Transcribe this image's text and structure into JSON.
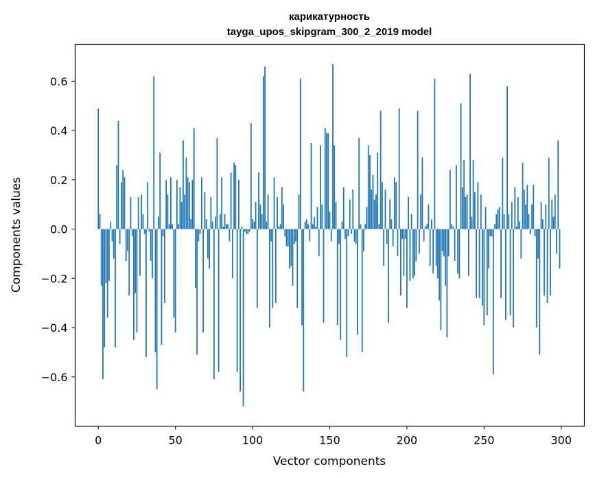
{
  "chart_data": {
    "type": "bar",
    "title_line1": "карикатурность",
    "title_line2": "tayga_upos_skipgram_300_2_2019 model",
    "xlabel": "Vector components",
    "ylabel": "Components values",
    "xlim": [
      -15,
      315
    ],
    "ylim": [
      -0.8,
      0.75
    ],
    "xticks": [
      0,
      50,
      100,
      150,
      200,
      250,
      300
    ],
    "xtick_labels": [
      "0",
      "50",
      "100",
      "150",
      "200",
      "250",
      "300"
    ],
    "yticks": [
      -0.6,
      -0.4,
      -0.2,
      0.0,
      0.2,
      0.4,
      0.6
    ],
    "ytick_labels": [
      "−0.6",
      "−0.4",
      "−0.2",
      "0.0",
      "0.2",
      "0.4",
      "0.6"
    ],
    "bar_color": "#1f77b4",
    "grid": false,
    "x": [
      0,
      1,
      2,
      3,
      4,
      5,
      6,
      7,
      8,
      9,
      10,
      11,
      12,
      13,
      14,
      15,
      16,
      17,
      18,
      19,
      20,
      21,
      22,
      23,
      24,
      25,
      26,
      27,
      28,
      29,
      30,
      31,
      32,
      33,
      34,
      35,
      36,
      37,
      38,
      39,
      40,
      41,
      42,
      43,
      44,
      45,
      46,
      47,
      48,
      49,
      50,
      51,
      52,
      53,
      54,
      55,
      56,
      57,
      58,
      59,
      60,
      61,
      62,
      63,
      64,
      65,
      66,
      67,
      68,
      69,
      70,
      71,
      72,
      73,
      74,
      75,
      76,
      77,
      78,
      79,
      80,
      81,
      82,
      83,
      84,
      85,
      86,
      87,
      88,
      89,
      90,
      91,
      92,
      93,
      94,
      95,
      96,
      97,
      98,
      99,
      100,
      101,
      102,
      103,
      104,
      105,
      106,
      107,
      108,
      109,
      110,
      111,
      112,
      113,
      114,
      115,
      116,
      117,
      118,
      119,
      120,
      121,
      122,
      123,
      124,
      125,
      126,
      127,
      128,
      129,
      130,
      131,
      132,
      133,
      134,
      135,
      136,
      137,
      138,
      139,
      140,
      141,
      142,
      143,
      144,
      145,
      146,
      147,
      148,
      149,
      150,
      151,
      152,
      153,
      154,
      155,
      156,
      157,
      158,
      159,
      160,
      161,
      162,
      163,
      164,
      165,
      166,
      167,
      168,
      169,
      170,
      171,
      172,
      173,
      174,
      175,
      176,
      177,
      178,
      179,
      180,
      181,
      182,
      183,
      184,
      185,
      186,
      187,
      188,
      189,
      190,
      191,
      192,
      193,
      194,
      195,
      196,
      197,
      198,
      199,
      200,
      201,
      202,
      203,
      204,
      205,
      206,
      207,
      208,
      209,
      210,
      211,
      212,
      213,
      214,
      215,
      216,
      217,
      218,
      219,
      220,
      221,
      222,
      223,
      224,
      225,
      226,
      227,
      228,
      229,
      230,
      231,
      232,
      233,
      234,
      235,
      236,
      237,
      238,
      239,
      240,
      241,
      242,
      243,
      244,
      245,
      246,
      247,
      248,
      249,
      250,
      251,
      252,
      253,
      254,
      255,
      256,
      257,
      258,
      259,
      260,
      261,
      262,
      263,
      264,
      265,
      266,
      267,
      268,
      269,
      270,
      271,
      272,
      273,
      274,
      275,
      276,
      277,
      278,
      279,
      280,
      281,
      282,
      283,
      284,
      285,
      286,
      287,
      288,
      289,
      290,
      291,
      292,
      293,
      294,
      295,
      296,
      297,
      298,
      299
    ],
    "values": [
      0.49,
      0.06,
      -0.23,
      -0.61,
      -0.48,
      -0.22,
      -0.36,
      -0.21,
      0.03,
      -0.05,
      -0.12,
      -0.48,
      0.26,
      0.44,
      -0.06,
      0.19,
      0.24,
      0.21,
      -0.13,
      -0.09,
      -0.27,
      0.13,
      -0.03,
      -0.45,
      -0.26,
      -0.42,
      0.13,
      -0.19,
      0.14,
      0.06,
      -0.02,
      -0.52,
      0.19,
      -0.01,
      -0.13,
      -0.2,
      0.62,
      -0.5,
      -0.65,
      0.05,
      0.31,
      -0.47,
      -0.03,
      -0.3,
      0.2,
      0.14,
      0.02,
      0.21,
      0.02,
      -0.36,
      -0.42,
      0.2,
      0.02,
      0.17,
      0.11,
      0.36,
      0.14,
      0.29,
      0.21,
      0.19,
      0.04,
      0.2,
      0.41,
      -0.24,
      -0.51,
      -0.05,
      -0.02,
      0.21,
      -0.42,
      0.15,
      0.04,
      -0.12,
      -0.16,
      0.13,
      0.03,
      -0.61,
      0.05,
      0.37,
      -0.58,
      0.06,
      0.21,
      0.01,
      0.06,
      0.02,
      0.02,
      -0.05,
      0.23,
      -0.2,
      0.27,
      0.26,
      -0.58,
      0.2,
      -0.66,
      0.01,
      -0.72,
      -0.01,
      -0.02,
      -0.02,
      -0.01,
      0.43,
      0.04,
      0.03,
      0.11,
      -0.32,
      0.23,
      0.1,
      0.06,
      0.62,
      0.66,
      0.03,
      0.14,
      -0.4,
      -0.05,
      -0.32,
      0.21,
      -0.3,
      0.13,
      0.01,
      0.02,
      0.17,
      0.1,
      -0.03,
      -0.07,
      -0.07,
      -0.16,
      -0.15,
      -0.23,
      -0.06,
      -0.05,
      -0.32,
      0.14,
      0.61,
      -0.39,
      -0.66,
      0.03,
      0.04,
      0.02,
      -0.05,
      0.35,
      0.02,
      0.05,
      0.01,
      0.09,
      -0.11,
      0.34,
      0.1,
      -0.38,
      0.41,
      0.39,
      0.39,
      0.07,
      -0.05,
      0.67,
      0.34,
      0.11,
      -0.39,
      -0.06,
      -0.45,
      0.03,
      0.17,
      -0.04,
      -0.52,
      -0.03,
      0.12,
      -0.02,
      0.16,
      -0.05,
      -0.06,
      -0.43,
      0.37,
      0.02,
      -0.5,
      -0.09,
      0.02,
      0.09,
      0.34,
      0.3,
      0.16,
      0.22,
      0.12,
      0.14,
      0.31,
      0.02,
      0.48,
      0.19,
      -0.15,
      0.16,
      -0.06,
      -0.38,
      0.12,
      0.04,
      -0.07,
      0.21,
      0.19,
      -0.11,
      0.49,
      -0.27,
      -0.04,
      -0.19,
      -0.04,
      -0.32,
      0.13,
      -0.21,
      0.06,
      -0.2,
      -0.19,
      -0.13,
      0.48,
      -0.1,
      0.14,
      0.29,
      -0.05,
      0.01,
      0.02,
      0.1,
      -0.15,
      0.04,
      -0.18,
      0.61,
      -0.15,
      -0.2,
      -0.29,
      -0.41,
      -0.09,
      -0.11,
      -0.23,
      -0.44,
      -0.11,
      0.24,
      0.02,
      0.01,
      -0.13,
      0.26,
      -0.18,
      -0.2,
      0.51,
      0.17,
      0.28,
      0.13,
      0.14,
      -0.19,
      0.63,
      0.05,
      0.28,
      0.15,
      -0.28,
      0.19,
      -0.28,
      0.14,
      -0.31,
      -0.39,
      0.09,
      -0.35,
      -0.16,
      -0.03,
      -0.03,
      -0.59,
      0.02,
      0.06,
      0.08,
      0.09,
      -0.28,
      0.29,
      0.06,
      -0.37,
      0.58,
      0.06,
      -0.35,
      0.11,
      -0.4,
      0.17,
      0.01,
      0.13,
      0.03,
      -0.12,
      0.27,
      0.16,
      0.1,
      0.18,
      0.06,
      -0.02,
      0.1,
      0.18,
      -0.03,
      -0.4,
      -0.12,
      -0.51,
      0.11,
      0.04,
      -0.27,
      0.1,
      -0.3,
      0.29,
      -0.27,
      0.12,
      0.05,
      0.14,
      -0.1,
      0.36,
      -0.16
    ]
  }
}
